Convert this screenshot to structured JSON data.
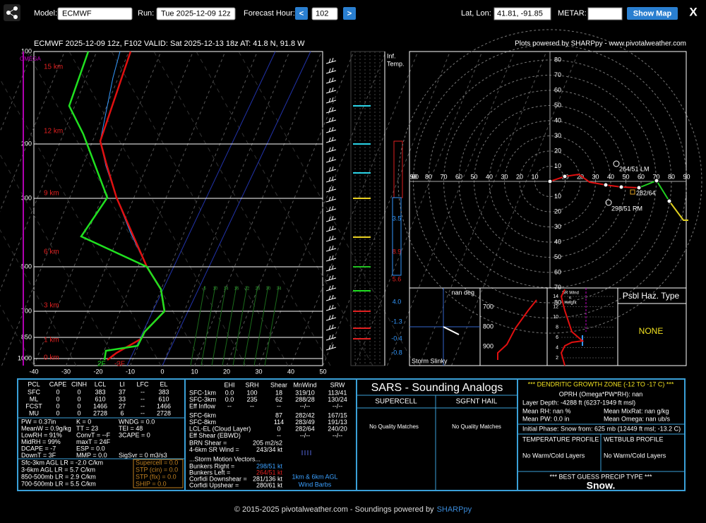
{
  "toolbar": {
    "model_label": "Model:",
    "model": "ECMWF",
    "run_label": "Run:",
    "run": "Tue 2025-12-09 12z",
    "fhour_label": "Forecast Hour:",
    "prev": "<",
    "fhour": "102",
    "next": ">",
    "latlon_label": "Lat, Lon:",
    "latlon": "41.81, -91.85",
    "metar_label": "METAR:",
    "show_map": "Show Map",
    "close": "X"
  },
  "header": {
    "title": "ECMWF 2025-12-09 12z, F102  VALID: Sat 2025-12-13 18z  AT: 41.8 N, 91.8 W",
    "credit": "Plots powered by SHARPpy - www.pivotalweather.com"
  },
  "skewt": {
    "pressures": [
      "100",
      "200",
      "300",
      "500",
      "700",
      "850",
      "1000"
    ],
    "temps": [
      "-40",
      "-30",
      "-20",
      "-10",
      "0",
      "10",
      "20",
      "30",
      "40",
      "50"
    ],
    "heights": [
      "15 km",
      "12 km",
      "9 km",
      "6 km",
      "3 km",
      "1 km",
      "0 km"
    ],
    "omega": "OMEGA",
    "sfc_temp": "-3F",
    "sfc_dew": "2F",
    "mixing": [
      "6",
      "10",
      "14",
      "16",
      "22",
      "26",
      "30",
      "34"
    ]
  },
  "inftemp": {
    "header": [
      "Inf.",
      "Temp."
    ],
    "values": [
      "3.5",
      "8.9",
      "5.6",
      "4.0",
      "-1.3",
      "-0.4",
      "-0.8"
    ]
  },
  "hodo": {
    "vticks_up": [
      "80",
      "70",
      "60",
      "50",
      "40",
      "30",
      "20",
      "10"
    ],
    "vticks_down": [
      "10",
      "20",
      "30",
      "40",
      "50",
      "60",
      "70",
      "80"
    ],
    "hticks_left": [
      "00",
      "90",
      "80",
      "70",
      "60",
      "50",
      "40",
      "30",
      "20",
      "10"
    ],
    "hticks_right": [
      "10",
      "20",
      "30",
      "40",
      "50",
      "60",
      "70",
      "80",
      "90"
    ],
    "lm": "264/51 LM",
    "rm": "298/51 RM",
    "mean": "282/64"
  },
  "slinky": {
    "angle": "nan deg",
    "label": "Storm Slinky"
  },
  "tadv": {
    "ticks": [
      "700",
      "800",
      "900"
    ]
  },
  "srwind": {
    "title": [
      "SR Wind",
      "v.",
      "Height"
    ],
    "ticks": [
      "14",
      "12",
      "10",
      "8",
      "6",
      "4",
      "2"
    ]
  },
  "hazard": {
    "title": "Psbl Haz. Type",
    "value": "NONE"
  },
  "thermo": {
    "headers": [
      "PCL",
      "CAPE",
      "CINH",
      "LCL",
      "LI",
      "LFC",
      "EL"
    ],
    "rows": [
      [
        "SFC",
        "0",
        "0",
        "383",
        "37",
        "--",
        "383"
      ],
      [
        "ML",
        "0",
        "0",
        "610",
        "33",
        "--",
        "610"
      ],
      [
        "FCST",
        "0",
        "0",
        "1466",
        "27",
        "--",
        "1466"
      ],
      [
        "MU",
        "0",
        "0",
        "2728",
        "6",
        "--",
        "2728"
      ]
    ],
    "indices": [
      [
        "PW = 0.37in",
        "K = 0",
        "WNDG = 0.0"
      ],
      [
        "MeanW = 0.9g/kg",
        "TT = 23",
        "TEI = 48"
      ],
      [
        "LowRH = 91%",
        "ConvT = --F",
        "3CAPE = 0"
      ],
      [
        "MidRH = 99%",
        "maxT = 24F"
      ],
      [
        "DCAPE = -7",
        "ESP = 0.0"
      ],
      [
        "DownT = 3F",
        "MMP = 0.0",
        "SigSvr = 0 m3/s3"
      ]
    ],
    "lapse": [
      "Sfc-3km AGL LR = -2.0 C/km",
      "3-6km AGL LR = 5.7 C/km",
      "850-500mb LR = 2.9 C/km",
      "700-500mb LR = 5.5 C/km"
    ],
    "composite": [
      "Supercell = 0.0",
      "STP (cin) = 0.0",
      "STP (fix) = 0.0",
      "SHIP = 0.0"
    ]
  },
  "kinematic": {
    "headers": [
      "EHI",
      "SRH",
      "Shear",
      "MnWind",
      "SRW"
    ],
    "rows": [
      [
        "SFC-1km",
        "0.0",
        "100",
        "18",
        "319/10",
        "113/41"
      ],
      [
        "SFC-3km",
        "0.0",
        "235",
        "62",
        "288/28",
        "130/24"
      ],
      [
        "Eff Inflow",
        "--",
        "--",
        "--",
        "--/--",
        "--/--"
      ]
    ],
    "rows2": [
      [
        "SFC-6km",
        "87",
        "282/42",
        "167/15"
      ],
      [
        "SFC-8km",
        "114",
        "283/49",
        "191/13"
      ],
      [
        "LCL-EL (Cloud Layer)",
        "0",
        "282/64",
        "240/20"
      ],
      [
        "Eff Shear (EBWD)",
        "--",
        "--/--",
        "--/--"
      ]
    ],
    "pairs": [
      [
        "BRN Shear =",
        "205 m2/s2"
      ],
      [
        "4-6km SR Wind =",
        "243/34 kt"
      ]
    ],
    "vectors_title": "...Storm Motion Vectors...",
    "vectors": [
      [
        "Bunkers Right =",
        "298/51 kt"
      ],
      [
        "Bunkers Left =",
        "264/51 kt"
      ],
      [
        "Corfidi Downshear =",
        "281/136 kt"
      ],
      [
        "Corfidi Upshear =",
        "280/61 kt"
      ]
    ],
    "barbs_note": [
      "1km & 6km AGL",
      "Wind Barbs"
    ]
  },
  "sars": {
    "title": "SARS - Sounding Analogs",
    "supercell": "SUPERCELL",
    "hail": "SGFNT HAIL",
    "supercell_result": "No Quality Matches",
    "hail_result": "No Quality Matches"
  },
  "dgz": {
    "title": "*** DENDRITIC GROWTH ZONE (-12 TO -17 C) ***",
    "oprh": "OPRH (Omega*PW*RH): nan",
    "depth": "Layer Depth: -4288 ft (6237-1949 ft msl)",
    "mean_rh": "Mean RH: nan %",
    "mean_mixrat": "Mean MixRat: nan g/kg",
    "mean_pw": "Mean PW: 0.0 in",
    "mean_omega": "Mean Omega: nan ub/s",
    "phase": "Initial Phase: Snow from: 625 mb (12449 ft msl; -13.2 C)",
    "temp_profile": "TEMPERATURE PROFILE",
    "wb_profile": "WETBULB PROFILE",
    "temp_result": "No Warm/Cold Layers",
    "wb_result": "No Warm/Cold Layers",
    "precip_title": "*** BEST GUESS PRECIP TYPE ***",
    "precip": "Snow."
  },
  "footer": {
    "text": "© 2015-2025 pivotalweather.com - Soundings powered by",
    "link": "SHARPpy"
  }
}
